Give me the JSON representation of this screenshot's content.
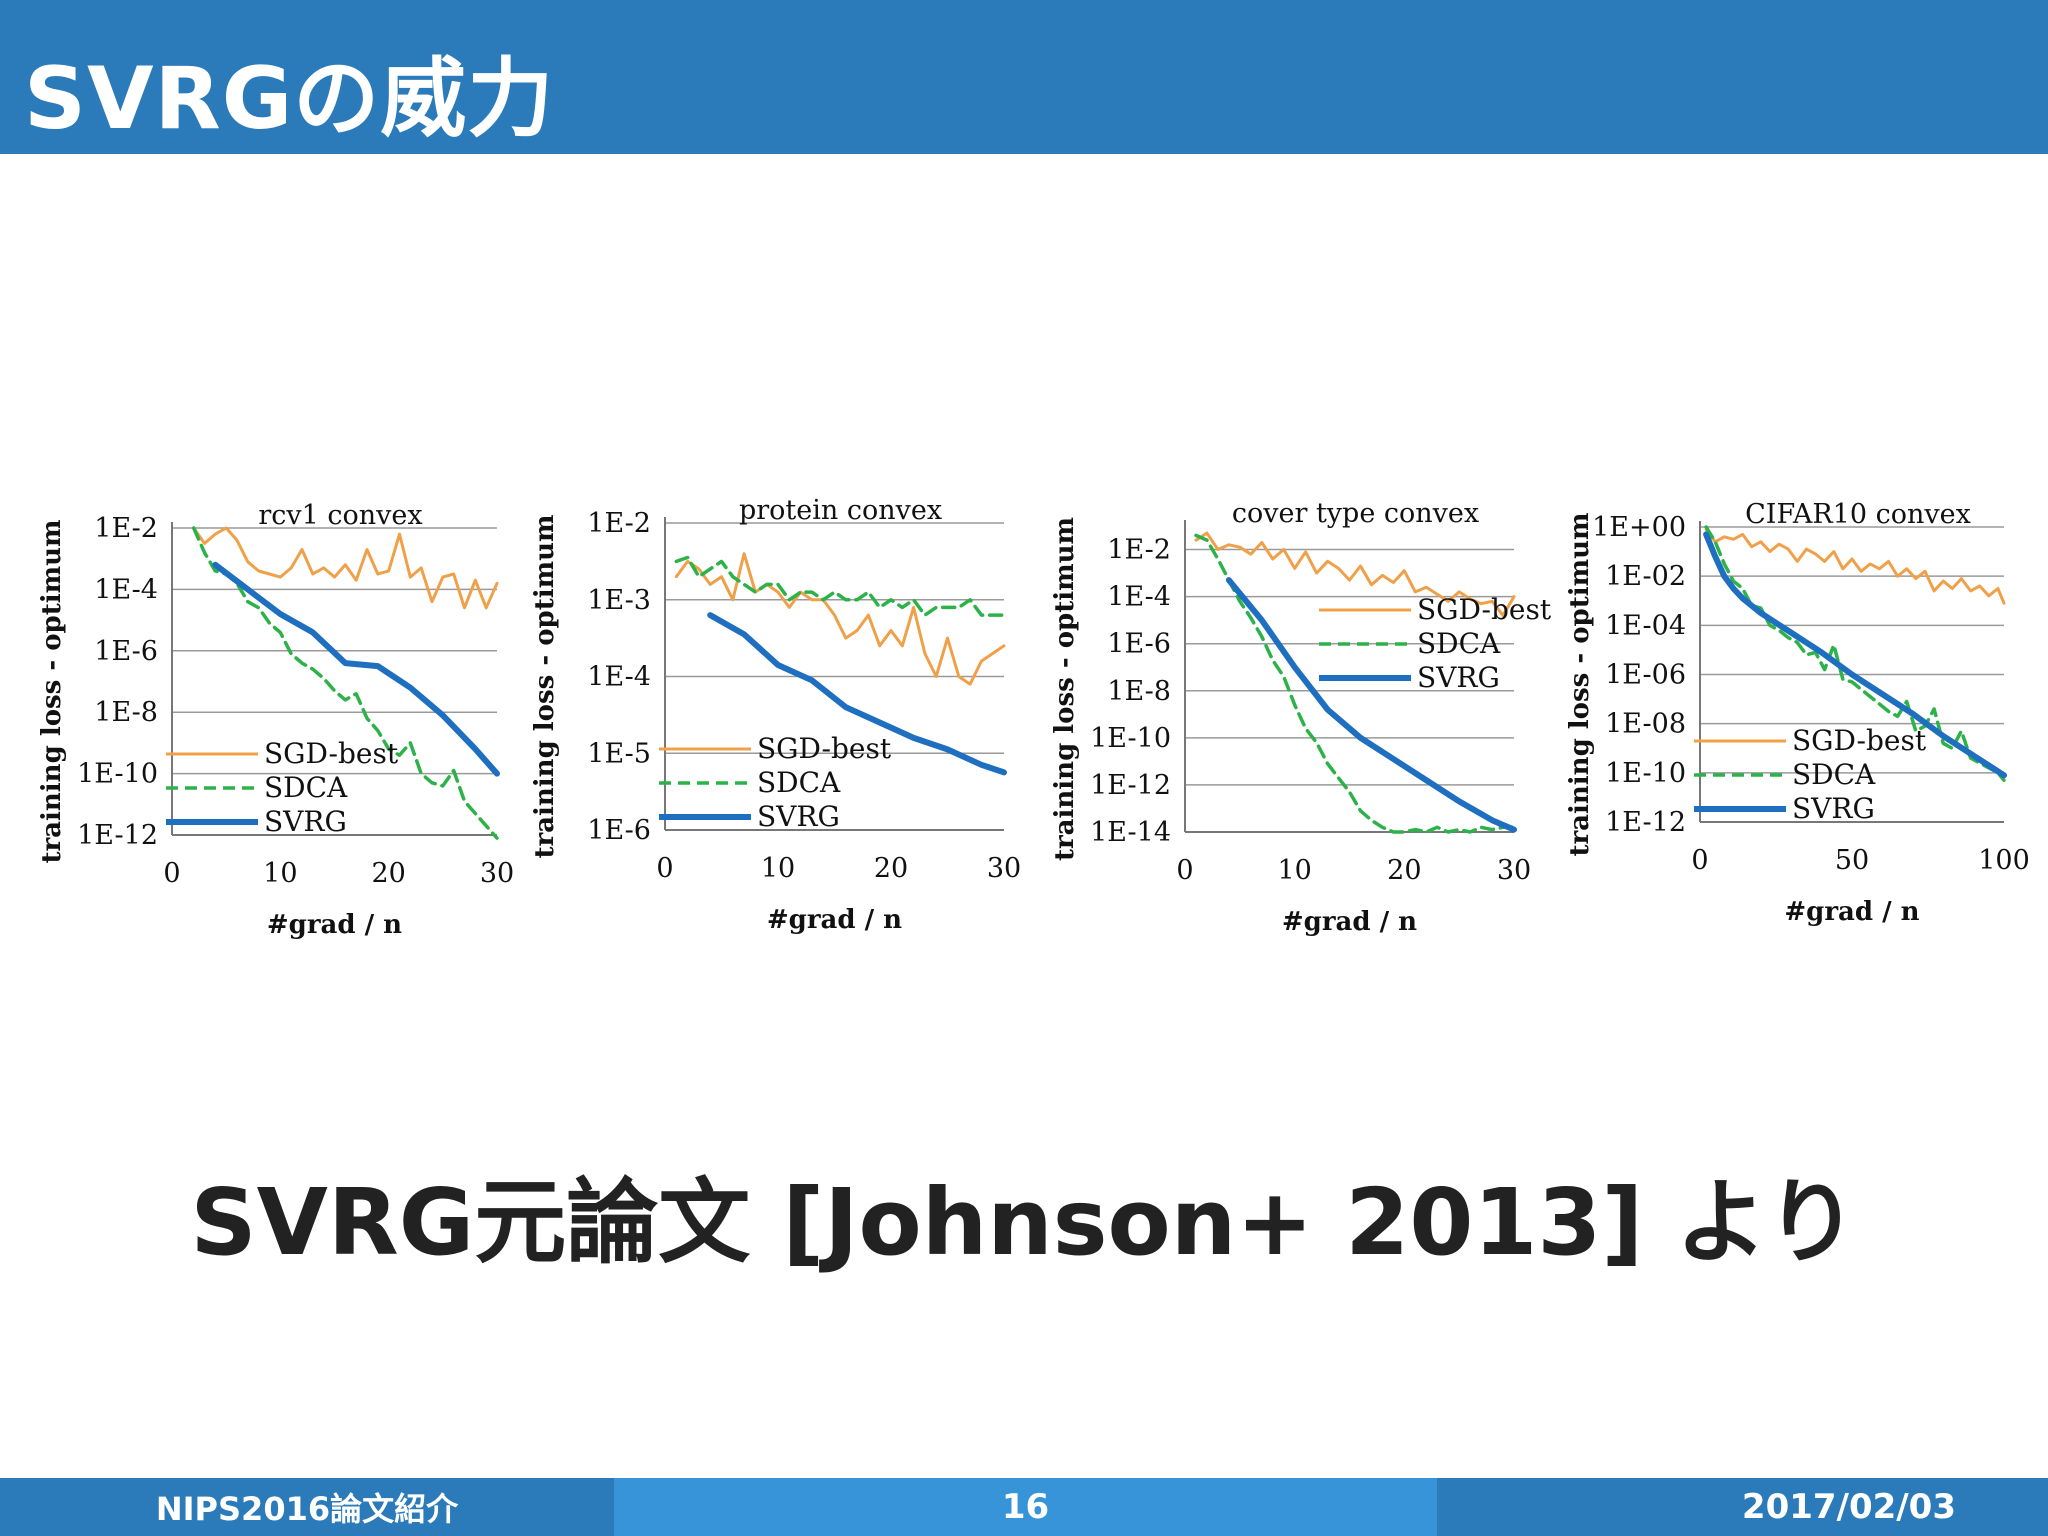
{
  "header": {
    "title": "SVRGの威力"
  },
  "caption": "SVRG元論文 [Johnson+ 2013] より",
  "footer": {
    "left": "NIPS2016論文紹介",
    "page": "16",
    "date": "2017/02/03"
  },
  "colors": {
    "sgd": "#f0a048",
    "sdca": "#2db24a",
    "svrg": "#1f6fc0",
    "header": "#2b7bba",
    "footer_mid": "#3794d8"
  },
  "chart_data": [
    {
      "type": "line",
      "title": "rcv1 convex",
      "xlabel": "#grad / n",
      "ylabel": "training loss - optimum",
      "log_y": true,
      "xlim": [
        0,
        30
      ],
      "xticks": [
        0,
        10,
        20,
        30
      ],
      "ylim_exp": [
        -12,
        -2
      ],
      "yticks": [
        {
          "exp": -2,
          "label": "1E-2"
        },
        {
          "exp": -4,
          "label": "1E-4"
        },
        {
          "exp": -6,
          "label": "1E-6"
        },
        {
          "exp": -8,
          "label": "1E-8"
        },
        {
          "exp": -10,
          "label": "1E-10"
        },
        {
          "exp": -12,
          "label": "1E-12"
        }
      ],
      "legend": "bottom-left",
      "series": [
        {
          "name": "SGD-best",
          "style": "sgd",
          "x": [
            2,
            3,
            4,
            5,
            6,
            7,
            8,
            9,
            10,
            11,
            12,
            13,
            14,
            15,
            16,
            17,
            18,
            19,
            20,
            21,
            22,
            23,
            24,
            25,
            26,
            27,
            28,
            29,
            30
          ],
          "y_exp": [
            -2,
            -2.5,
            -2.2,
            -2,
            -2.4,
            -3.1,
            -3.4,
            -3.5,
            -3.6,
            -3.3,
            -2.7,
            -3.5,
            -3.3,
            -3.6,
            -3.2,
            -3.7,
            -2.7,
            -3.5,
            -3.4,
            -2.2,
            -3.6,
            -3.3,
            -4.4,
            -3.6,
            -3.5,
            -4.6,
            -3.7,
            -4.6,
            -3.8
          ]
        },
        {
          "name": "SDCA",
          "style": "sdca",
          "x": [
            2,
            3,
            4,
            5,
            6,
            7,
            8,
            9,
            10,
            11,
            12,
            13,
            14,
            15,
            16,
            17,
            18,
            19,
            20,
            21,
            22,
            23,
            24,
            25,
            26,
            27,
            28,
            29,
            30
          ],
          "y_exp": [
            -2,
            -2.8,
            -3.4,
            -3.5,
            -3.8,
            -4.4,
            -4.6,
            -5.1,
            -5.4,
            -6.1,
            -6.4,
            -6.6,
            -6.9,
            -7.3,
            -7.6,
            -7.4,
            -8.2,
            -8.6,
            -9.2,
            -9.4,
            -9.0,
            -10.0,
            -10.3,
            -10.4,
            -9.9,
            -10.9,
            -11.3,
            -11.7,
            -12.1
          ]
        },
        {
          "name": "SVRG",
          "style": "svrg",
          "x": [
            4,
            7,
            10,
            13,
            16,
            19,
            22,
            25,
            28,
            30
          ],
          "y_exp": [
            -3.2,
            -4.0,
            -4.8,
            -5.4,
            -6.4,
            -6.5,
            -7.2,
            -8.1,
            -9.2,
            -10.0
          ]
        }
      ]
    },
    {
      "type": "line",
      "title": "protein convex",
      "xlabel": "#grad / n",
      "ylabel": "training loss - optimum",
      "log_y": true,
      "xlim": [
        0,
        30
      ],
      "xticks": [
        0,
        10,
        20,
        30
      ],
      "ylim_exp": [
        -6,
        -2
      ],
      "yticks": [
        {
          "exp": -2,
          "label": "1E-2"
        },
        {
          "exp": -3,
          "label": "1E-3"
        },
        {
          "exp": -4,
          "label": "1E-4"
        },
        {
          "exp": -5,
          "label": "1E-5"
        },
        {
          "exp": -6,
          "label": "1E-6"
        }
      ],
      "legend": "bottom-left",
      "series": [
        {
          "name": "SGD-best",
          "style": "sgd",
          "x": [
            1,
            2,
            3,
            4,
            5,
            6,
            7,
            8,
            9,
            10,
            11,
            12,
            13,
            14,
            15,
            16,
            17,
            18,
            19,
            20,
            21,
            22,
            23,
            24,
            25,
            26,
            27,
            28,
            29,
            30
          ],
          "y_exp": [
            -2.7,
            -2.5,
            -2.6,
            -2.8,
            -2.7,
            -3.0,
            -2.4,
            -2.9,
            -2.8,
            -2.9,
            -3.1,
            -2.9,
            -3.0,
            -3.0,
            -3.2,
            -3.5,
            -3.4,
            -3.2,
            -3.6,
            -3.4,
            -3.6,
            -3.1,
            -3.7,
            -4.0,
            -3.5,
            -4.0,
            -4.1,
            -3.8,
            -3.7,
            -3.6
          ]
        },
        {
          "name": "SDCA",
          "style": "sdca",
          "x": [
            1,
            2,
            3,
            4,
            5,
            6,
            7,
            8,
            9,
            10,
            11,
            12,
            13,
            14,
            15,
            16,
            17,
            18,
            19,
            20,
            21,
            22,
            23,
            24,
            25,
            26,
            27,
            28,
            29,
            30
          ],
          "y_exp": [
            -2.5,
            -2.45,
            -2.7,
            -2.6,
            -2.5,
            -2.7,
            -2.8,
            -2.9,
            -2.8,
            -2.8,
            -3.0,
            -2.9,
            -2.9,
            -3.0,
            -2.9,
            -3.0,
            -3.0,
            -2.9,
            -3.1,
            -3.0,
            -3.1,
            -3.0,
            -3.2,
            -3.1,
            -3.1,
            -3.1,
            -3.0,
            -3.2,
            -3.2,
            -3.2
          ]
        },
        {
          "name": "SVRG",
          "style": "svrg",
          "x": [
            4,
            7,
            10,
            13,
            16,
            19,
            22,
            25,
            28,
            30
          ],
          "y_exp": [
            -3.2,
            -3.45,
            -3.85,
            -4.05,
            -4.4,
            -4.6,
            -4.8,
            -4.95,
            -5.15,
            -5.25
          ]
        }
      ]
    },
    {
      "type": "line",
      "title": "cover type convex",
      "xlabel": "#grad / n",
      "ylabel": "training loss - optimum",
      "log_y": true,
      "xlim": [
        0,
        30
      ],
      "xticks": [
        0,
        10,
        20,
        30
      ],
      "ylim_exp": [
        -14,
        -1
      ],
      "yticks": [
        {
          "exp": -2,
          "label": "1E-2"
        },
        {
          "exp": -4,
          "label": "1E-4"
        },
        {
          "exp": -6,
          "label": "1E-6"
        },
        {
          "exp": -8,
          "label": "1E-8"
        },
        {
          "exp": -10,
          "label": "1E-10"
        },
        {
          "exp": -12,
          "label": "1E-12"
        },
        {
          "exp": -14,
          "label": "1E-14"
        }
      ],
      "legend": "top-right",
      "series": [
        {
          "name": "SGD-best",
          "style": "sgd",
          "x": [
            1,
            2,
            3,
            4,
            5,
            6,
            7,
            8,
            9,
            10,
            11,
            12,
            13,
            14,
            15,
            16,
            17,
            18,
            19,
            20,
            21,
            22,
            23,
            24,
            25,
            26,
            27,
            28,
            29,
            30
          ],
          "y_exp": [
            -1.6,
            -1.3,
            -2.0,
            -1.8,
            -1.9,
            -2.2,
            -1.7,
            -2.4,
            -2.0,
            -2.8,
            -2.1,
            -3.0,
            -2.5,
            -2.8,
            -3.3,
            -2.7,
            -3.5,
            -3.1,
            -3.4,
            -2.9,
            -3.8,
            -3.6,
            -3.9,
            -4.2,
            -3.8,
            -4.1,
            -4.3,
            -4.2,
            -4.8,
            -4.0
          ]
        },
        {
          "name": "SDCA",
          "style": "sdca",
          "x": [
            1,
            2,
            3,
            4,
            5,
            6,
            7,
            8,
            9,
            10,
            11,
            12,
            13,
            14,
            15,
            16,
            17,
            18,
            19,
            20,
            21,
            22,
            23,
            24,
            25,
            26,
            27,
            28,
            29,
            30
          ],
          "y_exp": [
            -1.4,
            -1.6,
            -2.4,
            -3.3,
            -4.2,
            -4.9,
            -5.7,
            -6.7,
            -7.4,
            -8.6,
            -9.6,
            -10.2,
            -11.1,
            -11.7,
            -12.3,
            -13.1,
            -13.5,
            -13.8,
            -14.0,
            -14.0,
            -13.9,
            -14.0,
            -13.8,
            -14.0,
            -13.9,
            -14.0,
            -13.8,
            -13.9,
            -13.8,
            -13.8
          ]
        },
        {
          "name": "SVRG",
          "style": "svrg",
          "x": [
            4,
            7,
            10,
            13,
            16,
            19,
            22,
            25,
            28,
            30
          ],
          "y_exp": [
            -3.3,
            -5.0,
            -7.0,
            -8.8,
            -10.0,
            -10.9,
            -11.8,
            -12.7,
            -13.5,
            -13.9
          ]
        }
      ]
    },
    {
      "type": "line",
      "title": "CIFAR10 convex",
      "xlabel": "#grad / n",
      "ylabel": "training loss - optimum",
      "log_y": true,
      "xlim": [
        0,
        100
      ],
      "xticks": [
        0,
        50,
        100
      ],
      "ylim_exp": [
        -12,
        0
      ],
      "yticks": [
        {
          "exp": 0,
          "label": "1E+00"
        },
        {
          "exp": -2,
          "label": "1E-02"
        },
        {
          "exp": -4,
          "label": "1E-04"
        },
        {
          "exp": -6,
          "label": "1E-06"
        },
        {
          "exp": -8,
          "label": "1E-08"
        },
        {
          "exp": -10,
          "label": "1E-10"
        },
        {
          "exp": -12,
          "label": "1E-12"
        }
      ],
      "legend": "bottom-left",
      "series": [
        {
          "name": "SGD-best",
          "style": "sgd",
          "x": [
            2,
            5,
            8,
            11,
            14,
            17,
            20,
            23,
            26,
            29,
            32,
            35,
            38,
            41,
            44,
            47,
            50,
            53,
            56,
            59,
            62,
            65,
            68,
            71,
            74,
            77,
            80,
            83,
            86,
            89,
            92,
            95,
            98,
            100
          ],
          "y_exp": [
            -0.1,
            -0.6,
            -0.4,
            -0.5,
            -0.3,
            -0.8,
            -0.6,
            -1.0,
            -0.7,
            -0.9,
            -1.4,
            -0.9,
            -1.1,
            -1.4,
            -1.0,
            -1.7,
            -1.3,
            -1.8,
            -1.5,
            -1.7,
            -1.4,
            -2.0,
            -1.7,
            -2.1,
            -1.8,
            -2.6,
            -2.2,
            -2.5,
            -2.1,
            -2.6,
            -2.4,
            -2.8,
            -2.5,
            -3.1
          ]
        },
        {
          "name": "SDCA",
          "style": "sdca",
          "x": [
            2,
            5,
            8,
            11,
            14,
            17,
            20,
            23,
            26,
            29,
            32,
            35,
            38,
            41,
            44,
            47,
            50,
            53,
            56,
            59,
            62,
            65,
            68,
            71,
            74,
            77,
            80,
            83,
            86,
            89,
            92,
            95,
            98,
            100
          ],
          "y_exp": [
            0,
            -0.6,
            -1.5,
            -2.2,
            -2.5,
            -3.2,
            -3.3,
            -4.0,
            -4.2,
            -4.5,
            -4.7,
            -5.2,
            -5.1,
            -5.8,
            -4.8,
            -6.2,
            -6.3,
            -6.6,
            -6.9,
            -7.2,
            -7.5,
            -7.7,
            -7.1,
            -8.3,
            -8.1,
            -7.4,
            -8.8,
            -9.0,
            -8.3,
            -9.4,
            -9.6,
            -9.8,
            -10.0,
            -10.3
          ]
        },
        {
          "name": "SVRG",
          "style": "svrg",
          "x": [
            2,
            5,
            8,
            11,
            14,
            17,
            20,
            25,
            30,
            40,
            50,
            60,
            70,
            80,
            90,
            100
          ],
          "y_exp": [
            -0.3,
            -1.2,
            -2.0,
            -2.5,
            -2.9,
            -3.2,
            -3.5,
            -3.9,
            -4.3,
            -5.1,
            -6.0,
            -6.8,
            -7.6,
            -8.5,
            -9.3,
            -10.1
          ]
        }
      ]
    }
  ]
}
